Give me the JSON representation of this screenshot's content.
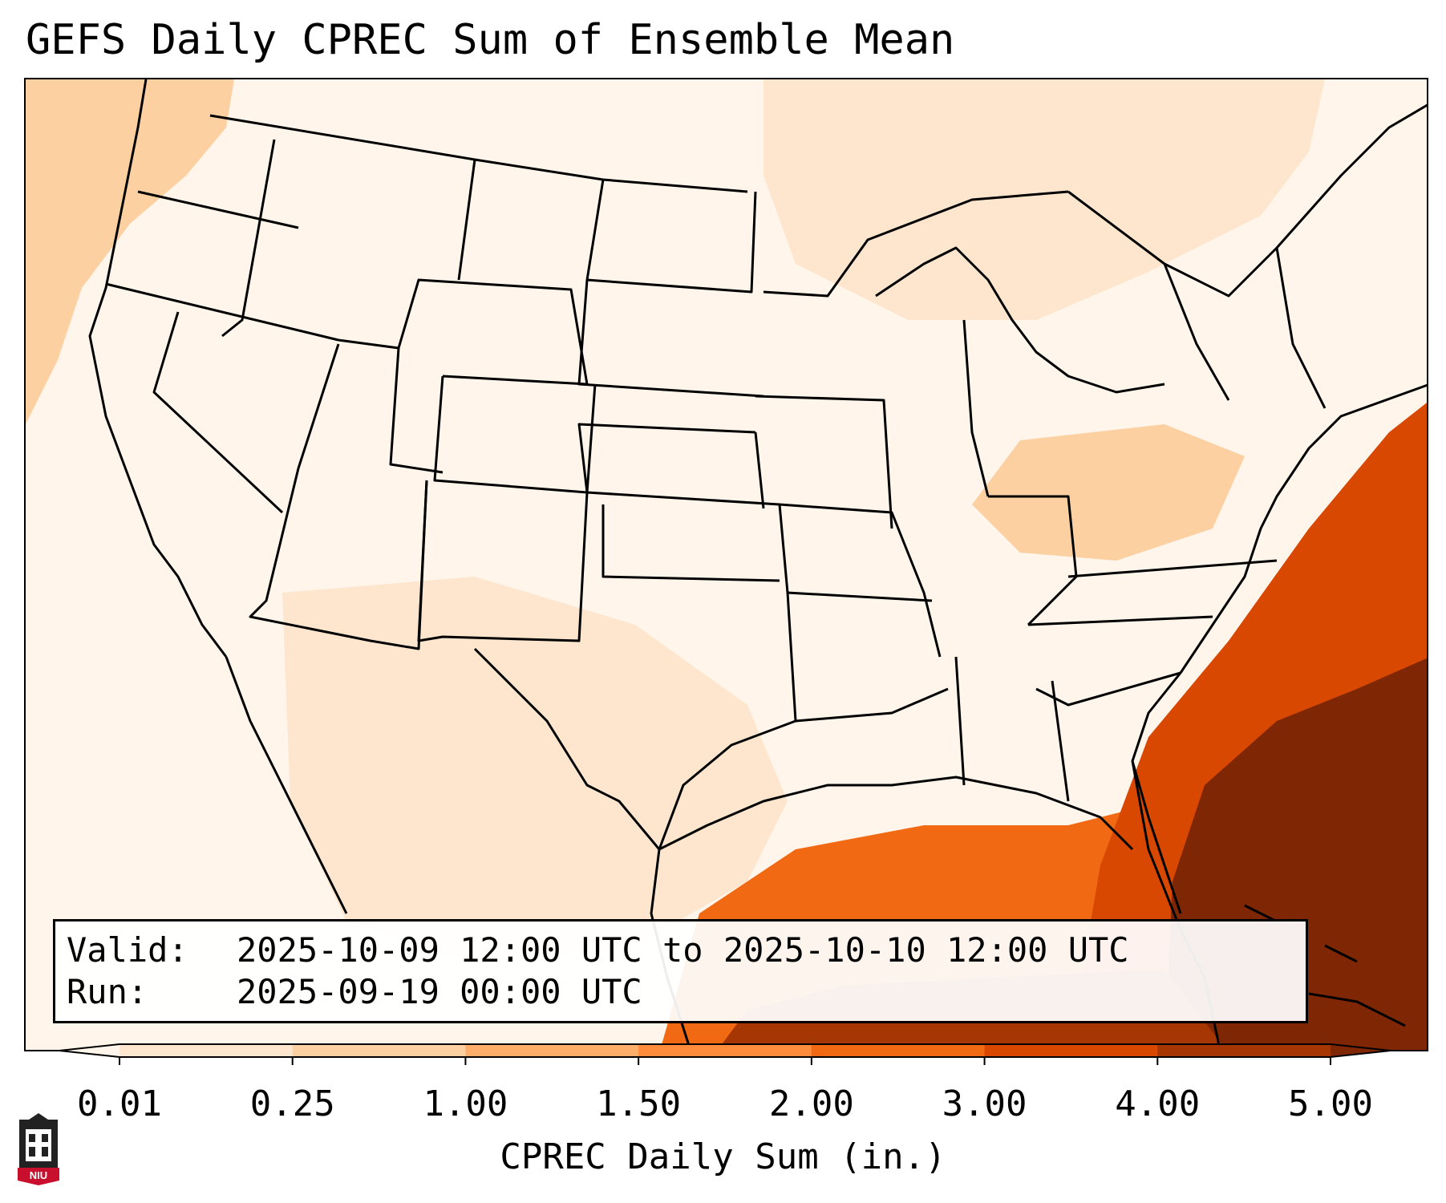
{
  "title": "GEFS Daily CPREC Sum of Ensemble Mean",
  "info": {
    "valid_label": "Valid:",
    "valid_value": "2025-10-09 12:00 UTC to 2025-10-10 12:00 UTC",
    "run_label": "Run:",
    "run_value": "2025-09-19 00:00 UTC"
  },
  "colorbar": {
    "label": "CPREC Daily Sum (in.)",
    "ticks": [
      "0.01",
      "0.25",
      "1.00",
      "1.50",
      "2.00",
      "3.00",
      "4.00",
      "5.00"
    ],
    "colors": [
      "#fff5eb",
      "#fee6ce",
      "#fdd0a2",
      "#fdae6b",
      "#fd8d3c",
      "#f16913",
      "#d94801",
      "#a63603",
      "#7f2704"
    ]
  },
  "logo": {
    "text": "NIU",
    "color": "#c8102e"
  },
  "map_fields": [
    {
      "region": "background",
      "color": "#fff5eb"
    },
    {
      "region": "pacific-northwest-coast",
      "color": "#fdd0a2"
    },
    {
      "region": "canada-plains",
      "color": "#fee6ce"
    },
    {
      "region": "southwest-mexico",
      "color": "#fee6ce"
    },
    {
      "region": "ohio-valley-appalachians",
      "color": "#fdd0a2"
    },
    {
      "region": "gulf-of-mexico",
      "color": "#f16913"
    },
    {
      "region": "western-atlantic",
      "color": "#d94801"
    },
    {
      "region": "bahamas-core",
      "color": "#7f2704"
    },
    {
      "region": "cuba-caribbean",
      "color": "#a63603"
    }
  ]
}
